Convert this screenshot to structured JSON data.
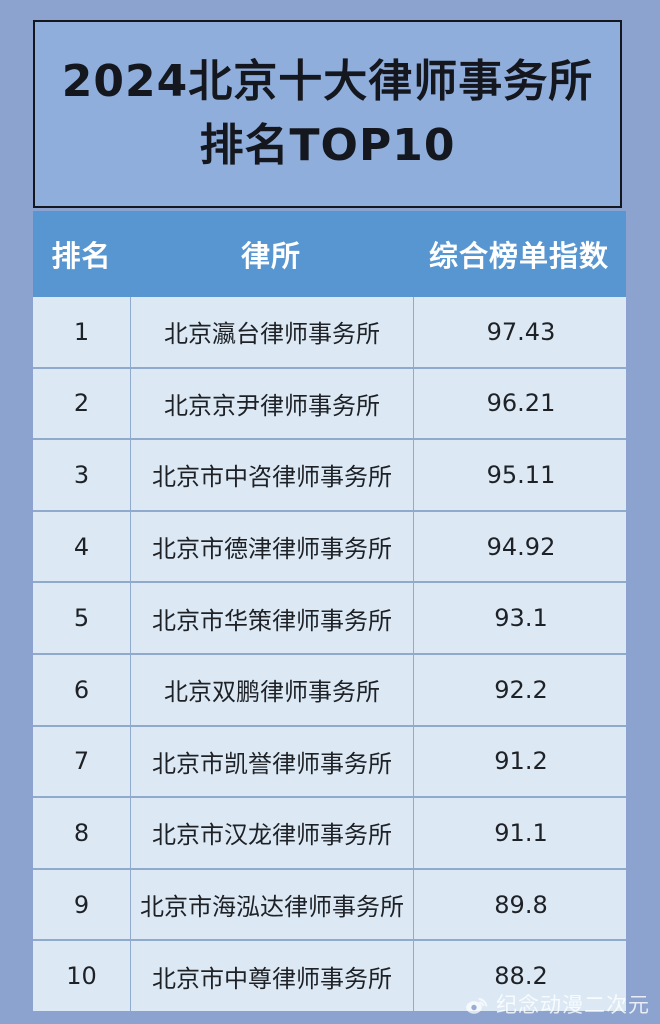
{
  "header": {
    "title": "2024北京十大律师事务所排名TOP10"
  },
  "chart_data": {
    "type": "table",
    "title": "2024北京十大律师事务所排名TOP10",
    "columns": [
      "排名",
      "律所",
      "综合榜单指数"
    ],
    "rows": [
      [
        "1",
        "北京瀛台律师事务所",
        "97.43"
      ],
      [
        "2",
        "北京京尹律师事务所",
        "96.21"
      ],
      [
        "3",
        "北京市中咨律师事务所",
        "95.11"
      ],
      [
        "4",
        "北京市德津律师事务所",
        "94.92"
      ],
      [
        "5",
        "北京市华策律师事务所",
        "93.1"
      ],
      [
        "6",
        "北京双鹏律师事务所",
        "92.2"
      ],
      [
        "7",
        "北京市凯誉律师事务所",
        "91.2"
      ],
      [
        "8",
        "北京市汉龙律师事务所",
        "91.1"
      ],
      [
        "9",
        "北京市海泓达律师事务所",
        "89.8"
      ],
      [
        "10",
        "北京市中尊律师事务所",
        "88.2"
      ]
    ]
  },
  "watermark": {
    "icon": "weibo-icon",
    "text": "纪念动漫二次元"
  },
  "colors": {
    "page_background": "#8CA3CF",
    "title_box_background": "#8FAEDC",
    "title_box_border": "#15171E",
    "header_row_background": "#5796D1",
    "header_text": "#FFFFFF",
    "row_background": "#DCE9F5",
    "grid_line": "#8FAACD",
    "cell_text": "#1E2126",
    "watermark_text": "#FFFFFF"
  }
}
